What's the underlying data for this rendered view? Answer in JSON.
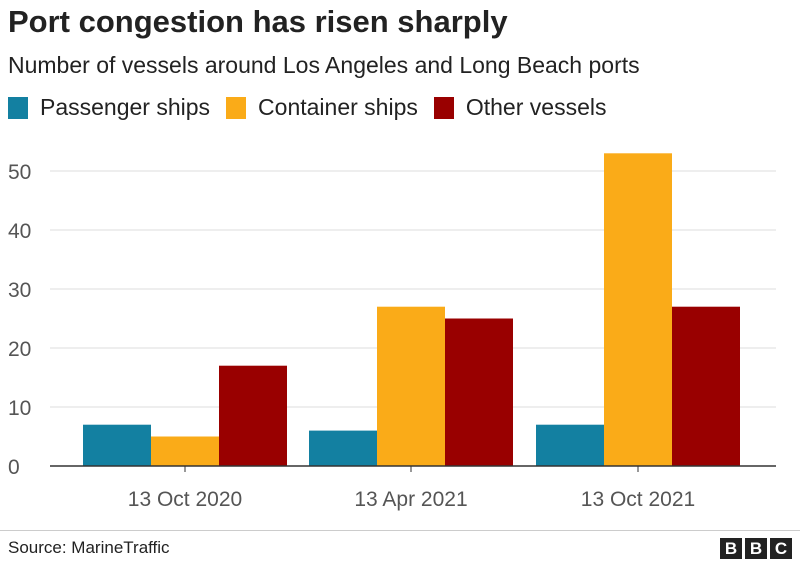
{
  "chart_data": {
    "type": "bar",
    "title": "Port congestion has risen sharply",
    "subtitle": "Number of vessels around Los Angeles and Long Beach ports",
    "categories": [
      "13 Oct 2020",
      "13 Apr 2021",
      "13 Oct 2021"
    ],
    "series": [
      {
        "name": "Passenger ships",
        "color": "#1380A1",
        "values": [
          7,
          6,
          7
        ]
      },
      {
        "name": "Container ships",
        "color": "#FAAB18",
        "values": [
          5,
          27,
          53
        ]
      },
      {
        "name": "Other vessels",
        "color": "#990000",
        "values": [
          17,
          25,
          27
        ]
      }
    ],
    "yticks": [
      0,
      10,
      20,
      30,
      40,
      50
    ],
    "ylim": [
      0,
      53
    ],
    "grid": true,
    "legend": "top-left"
  },
  "source": "Source: MarineTraffic",
  "logo": [
    "B",
    "B",
    "C"
  ]
}
